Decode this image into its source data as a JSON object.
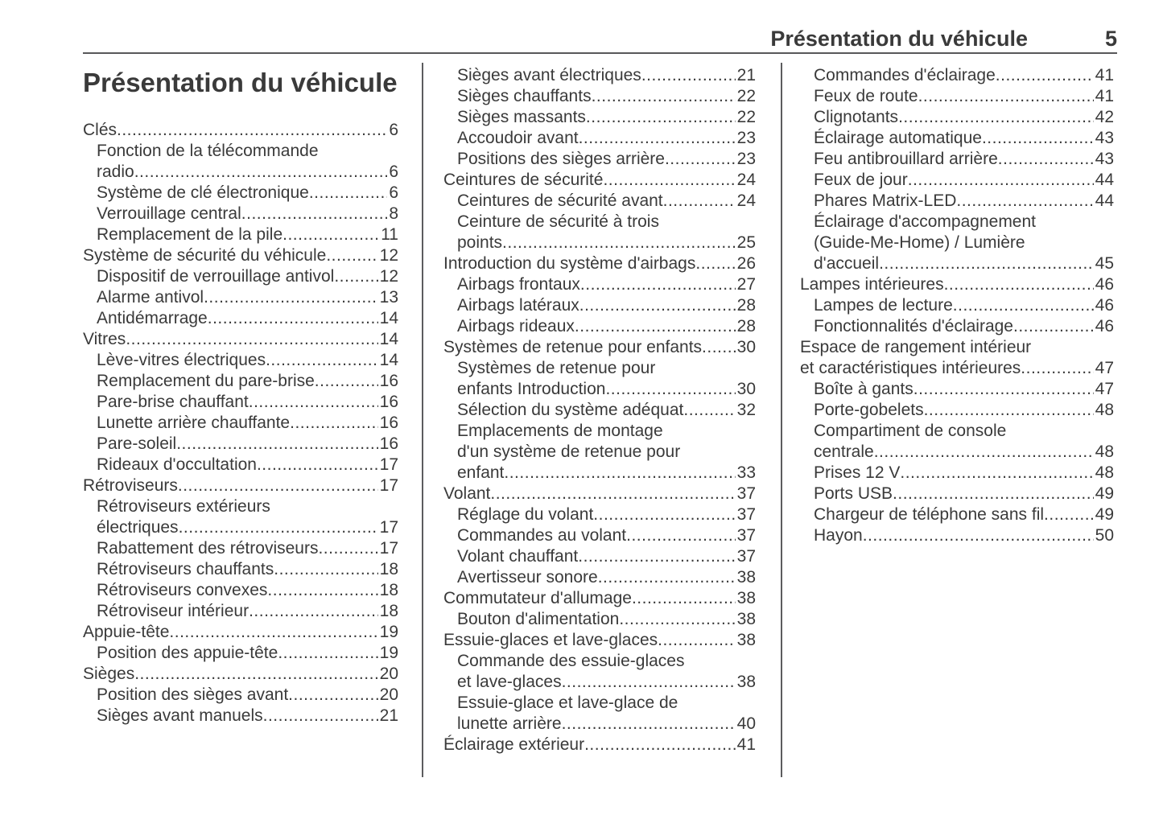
{
  "colors": {
    "text": "#3a3a3a",
    "header_rule": "#58585a",
    "column_divider": "#5c5c5e",
    "background": "#ffffff"
  },
  "header": {
    "title": "Présentation du véhicule",
    "page_number": "5"
  },
  "col1": {
    "title": "Présentation du véhicule",
    "entries": [
      {
        "level": 0,
        "lines": [
          "Clés"
        ],
        "page": "6"
      },
      {
        "level": 1,
        "lines": [
          "Fonction de la télécommande",
          "radio"
        ],
        "page": "6"
      },
      {
        "level": 1,
        "lines": [
          "Système de clé électronique"
        ],
        "page": "6"
      },
      {
        "level": 1,
        "lines": [
          "Verrouillage central"
        ],
        "page": "8"
      },
      {
        "level": 1,
        "lines": [
          "Remplacement de la pile"
        ],
        "page": "11"
      },
      {
        "level": 0,
        "lines": [
          "Système de sécurité du véhicule"
        ],
        "page": "12"
      },
      {
        "level": 1,
        "lines": [
          "Dispositif de verrouillage antivol"
        ],
        "page": "12"
      },
      {
        "level": 1,
        "lines": [
          "Alarme antivol"
        ],
        "page": "13"
      },
      {
        "level": 1,
        "lines": [
          "Antidémarrage"
        ],
        "page": "14"
      },
      {
        "level": 0,
        "lines": [
          "Vitres"
        ],
        "page": "14"
      },
      {
        "level": 1,
        "lines": [
          "Lève-vitres électriques"
        ],
        "page": "14"
      },
      {
        "level": 1,
        "lines": [
          "Remplacement du pare-brise"
        ],
        "page": "16"
      },
      {
        "level": 1,
        "lines": [
          "Pare-brise chauffant"
        ],
        "page": "16"
      },
      {
        "level": 1,
        "lines": [
          "Lunette arrière chauffante"
        ],
        "page": "16"
      },
      {
        "level": 1,
        "lines": [
          "Pare-soleil"
        ],
        "page": "16"
      },
      {
        "level": 1,
        "lines": [
          "Rideaux d'occultation"
        ],
        "page": "17"
      },
      {
        "level": 0,
        "lines": [
          "Rétroviseurs"
        ],
        "page": "17"
      },
      {
        "level": 1,
        "lines": [
          "Rétroviseurs extérieurs",
          "électriques"
        ],
        "page": "17"
      },
      {
        "level": 1,
        "lines": [
          "Rabattement des rétroviseurs"
        ],
        "page": "17"
      },
      {
        "level": 1,
        "lines": [
          "Rétroviseurs chauffants"
        ],
        "page": "18"
      },
      {
        "level": 1,
        "lines": [
          "Rétroviseurs convexes"
        ],
        "page": "18"
      },
      {
        "level": 1,
        "lines": [
          "Rétroviseur intérieur"
        ],
        "page": "18"
      },
      {
        "level": 0,
        "lines": [
          "Appuie-tête"
        ],
        "page": "19"
      },
      {
        "level": 1,
        "lines": [
          "Position des appuie-tête"
        ],
        "page": "19"
      },
      {
        "level": 0,
        "lines": [
          "Sièges"
        ],
        "page": "20"
      },
      {
        "level": 1,
        "lines": [
          "Position des sièges avant"
        ],
        "page": "20"
      },
      {
        "level": 1,
        "lines": [
          "Sièges avant manuels"
        ],
        "page": "21"
      }
    ]
  },
  "col2": {
    "entries": [
      {
        "level": 1,
        "lines": [
          "Sièges avant électriques"
        ],
        "page": "21"
      },
      {
        "level": 1,
        "lines": [
          "Sièges chauffants"
        ],
        "page": "22"
      },
      {
        "level": 1,
        "lines": [
          "Sièges massants"
        ],
        "page": "22"
      },
      {
        "level": 1,
        "lines": [
          "Accoudoir avant"
        ],
        "page": "23"
      },
      {
        "level": 1,
        "lines": [
          "Positions des sièges arrière"
        ],
        "page": "23"
      },
      {
        "level": 0,
        "lines": [
          "Ceintures de sécurité"
        ],
        "page": "24"
      },
      {
        "level": 1,
        "lines": [
          "Ceintures de sécurité avant"
        ],
        "page": "24"
      },
      {
        "level": 1,
        "lines": [
          "Ceinture de sécurité à trois",
          "points"
        ],
        "page": "25"
      },
      {
        "level": 0,
        "lines": [
          "Introduction du système d'airbags"
        ],
        "page": "26"
      },
      {
        "level": 1,
        "lines": [
          "Airbags frontaux"
        ],
        "page": "27"
      },
      {
        "level": 1,
        "lines": [
          "Airbags latéraux"
        ],
        "page": "28"
      },
      {
        "level": 1,
        "lines": [
          "Airbags rideaux"
        ],
        "page": "28"
      },
      {
        "level": 0,
        "lines": [
          "Systèmes de retenue pour enfants"
        ],
        "page": "30"
      },
      {
        "level": 1,
        "lines": [
          "Systèmes de retenue pour",
          "enfants Introduction"
        ],
        "page": "30"
      },
      {
        "level": 1,
        "lines": [
          "Sélection du système adéquat"
        ],
        "page": "32"
      },
      {
        "level": 1,
        "lines": [
          "Emplacements de montage",
          "d'un système de retenue pour",
          "enfant"
        ],
        "page": "33"
      },
      {
        "level": 0,
        "lines": [
          "Volant"
        ],
        "page": "37"
      },
      {
        "level": 1,
        "lines": [
          "Réglage du volant"
        ],
        "page": "37"
      },
      {
        "level": 1,
        "lines": [
          "Commandes au volant"
        ],
        "page": "37"
      },
      {
        "level": 1,
        "lines": [
          "Volant chauffant"
        ],
        "page": "37"
      },
      {
        "level": 1,
        "lines": [
          "Avertisseur sonore"
        ],
        "page": "38"
      },
      {
        "level": 0,
        "lines": [
          "Commutateur d'allumage"
        ],
        "page": "38"
      },
      {
        "level": 1,
        "lines": [
          "Bouton d'alimentation"
        ],
        "page": "38"
      },
      {
        "level": 0,
        "lines": [
          "Essuie-glaces et lave-glaces"
        ],
        "page": "38"
      },
      {
        "level": 1,
        "lines": [
          "Commande des essuie-glaces",
          "et lave-glaces"
        ],
        "page": "38"
      },
      {
        "level": 1,
        "lines": [
          "Essuie-glace et lave-glace de",
          "lunette arrière"
        ],
        "page": "40"
      },
      {
        "level": 0,
        "lines": [
          "Éclairage extérieur"
        ],
        "page": "41"
      }
    ]
  },
  "col3": {
    "entries": [
      {
        "level": 1,
        "lines": [
          "Commandes d'éclairage"
        ],
        "page": "41"
      },
      {
        "level": 1,
        "lines": [
          "Feux de route"
        ],
        "page": "41"
      },
      {
        "level": 1,
        "lines": [
          "Clignotants"
        ],
        "page": "42"
      },
      {
        "level": 1,
        "lines": [
          "Éclairage automatique"
        ],
        "page": "43"
      },
      {
        "level": 1,
        "lines": [
          "Feu antibrouillard arrière"
        ],
        "page": "43"
      },
      {
        "level": 1,
        "lines": [
          "Feux de jour"
        ],
        "page": "44"
      },
      {
        "level": 1,
        "lines": [
          "Phares Matrix-LED"
        ],
        "page": "44"
      },
      {
        "level": 1,
        "lines": [
          "Éclairage d'accompagnement",
          "(Guide-Me-Home) / Lumière",
          "d'accueil"
        ],
        "page": "45"
      },
      {
        "level": 0,
        "lines": [
          "Lampes intérieures"
        ],
        "page": "46"
      },
      {
        "level": 1,
        "lines": [
          "Lampes de lecture"
        ],
        "page": "46"
      },
      {
        "level": 1,
        "lines": [
          "Fonctionnalités d'éclairage"
        ],
        "page": "46"
      },
      {
        "level": 0,
        "lines": [
          "Espace de rangement intérieur",
          "et caractéristiques intérieures"
        ],
        "page": "47"
      },
      {
        "level": 1,
        "lines": [
          "Boîte à gants"
        ],
        "page": "47"
      },
      {
        "level": 1,
        "lines": [
          "Porte-gobelets"
        ],
        "page": "48"
      },
      {
        "level": 1,
        "lines": [
          "Compartiment de console",
          "centrale"
        ],
        "page": "48"
      },
      {
        "level": 1,
        "lines": [
          "Prises 12 V"
        ],
        "page": "48"
      },
      {
        "level": 1,
        "lines": [
          "Ports USB"
        ],
        "page": "49"
      },
      {
        "level": 1,
        "lines": [
          "Chargeur de téléphone sans fil"
        ],
        "page": "49"
      },
      {
        "level": 1,
        "lines": [
          "Hayon"
        ],
        "page": "50"
      }
    ]
  }
}
